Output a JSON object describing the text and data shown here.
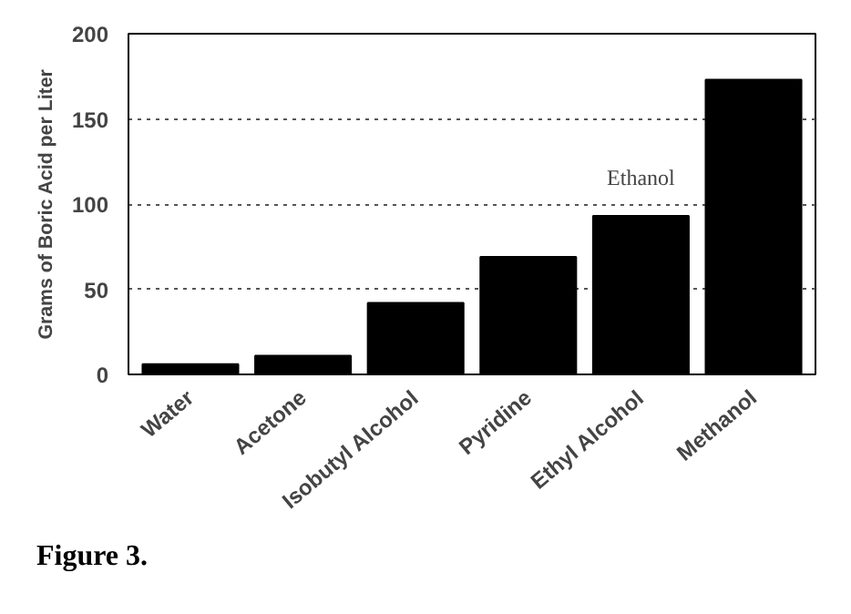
{
  "chart_data": {
    "type": "bar",
    "ylabel": "Grams of Boric Acid per Liter",
    "categories": [
      "Water",
      "Acetone",
      "Isobutyl Alcohol",
      "Pyridine",
      "Ethyl Alcohol",
      "Methanol"
    ],
    "values": [
      6,
      11,
      42,
      69,
      93,
      173
    ],
    "color": "#000000",
    "ylim": [
      0,
      200
    ],
    "yticks": [
      0,
      50,
      100,
      150,
      200
    ],
    "grid": "y",
    "annotations": [
      {
        "text": "Ethanol",
        "x": "Ethyl Alcohol",
        "y": 93
      },
      "Figure 3."
    ]
  }
}
